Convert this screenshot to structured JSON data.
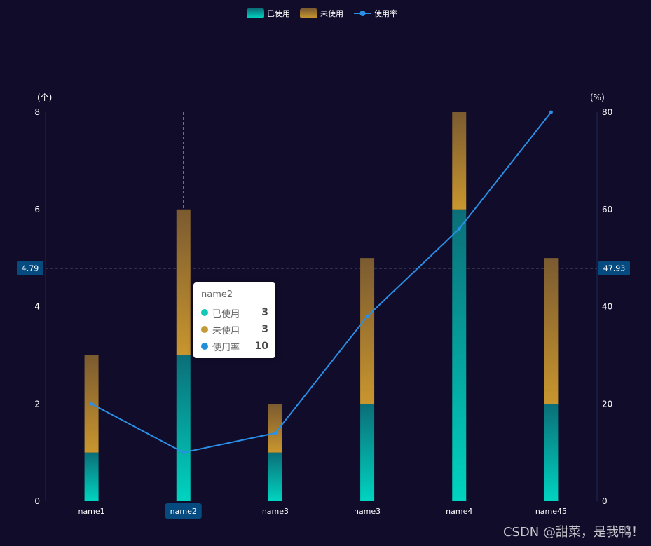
{
  "chart_data": {
    "type": "bar",
    "categories": [
      "name1",
      "name2",
      "name3",
      "name3",
      "name4",
      "name45"
    ],
    "series": [
      {
        "name": "已使用",
        "type": "bar",
        "stack": true,
        "values": [
          1,
          3,
          1,
          2,
          6,
          2
        ]
      },
      {
        "name": "未使用",
        "type": "bar",
        "stack": true,
        "values": [
          2,
          3,
          1,
          3,
          2,
          3
        ]
      },
      {
        "name": "使用率",
        "type": "line",
        "axis": "right",
        "values": [
          20,
          10,
          14,
          38,
          56,
          80
        ]
      }
    ],
    "y_left": {
      "unit": "(个)",
      "range": [
        0,
        8
      ],
      "ticks": [
        "0",
        "2",
        "4",
        "6",
        "8"
      ]
    },
    "y_right": {
      "unit": "(%)",
      "range": [
        0,
        80
      ],
      "ticks": [
        "0",
        "20",
        "40",
        "60",
        "80"
      ]
    },
    "crosshair": {
      "category": "name2",
      "left_value": "4.79",
      "right_value": "47.93"
    },
    "legend": {
      "position": "top-center",
      "items": [
        "已使用",
        "未使用",
        "使用率"
      ]
    },
    "grid": false
  },
  "tooltip": {
    "title": "name2",
    "rows": [
      {
        "label": "已使用",
        "value": "3",
        "color": "#14c8b8"
      },
      {
        "label": "未使用",
        "value": "3",
        "color": "#c39a38"
      },
      {
        "label": "使用率",
        "value": "10",
        "color": "#1f8fd6"
      }
    ]
  },
  "colors": {
    "background": "#100c2a",
    "used_top": "#0b6e78",
    "used_bottom": "#00d4c0",
    "unused_top": "#7a5a30",
    "unused_bottom": "#c9962e",
    "line": "#2a8fe6",
    "label_bg": "#054b80"
  },
  "watermark": "CSDN @甜菜，是我鸭！"
}
